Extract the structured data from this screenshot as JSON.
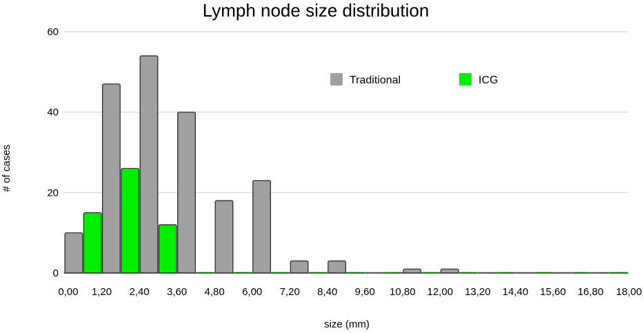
{
  "chart_data": {
    "type": "bar",
    "title": "Lymph node size distribution",
    "xlabel": "size (mm)",
    "ylabel": "# of cases",
    "ylim": [
      0,
      60
    ],
    "yticks": [
      0,
      20,
      40,
      60
    ],
    "xtick_labels": [
      "0,00",
      "1,20",
      "2,40",
      "3,60",
      "4,80",
      "6,00",
      "7,20",
      "8,40",
      "9,60",
      "10,80",
      "12,00",
      "13,20",
      "14,40",
      "15,60",
      "16,80",
      "18,00"
    ],
    "bins": 15,
    "grid": true,
    "legend_position": "top-right",
    "series": [
      {
        "name": "Traditional",
        "color": "#a0a0a0",
        "values": [
          10,
          47,
          54,
          40,
          18,
          23,
          3,
          3,
          0,
          1,
          1,
          0,
          0,
          0,
          0
        ]
      },
      {
        "name": "ICG",
        "color": "#00ee00",
        "values": [
          15,
          26,
          12,
          0,
          0,
          0,
          0,
          0,
          0,
          0,
          0,
          0,
          0,
          0,
          0
        ]
      }
    ]
  }
}
